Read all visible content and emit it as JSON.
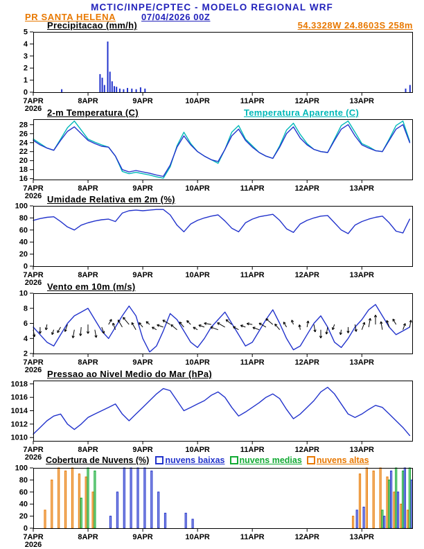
{
  "header": {
    "title": "MCTIC/INPE/CPTEC - MODELO REGIONAL WRF",
    "station": "PR SANTA HELENA",
    "run": "07/04/2026 00Z",
    "coords": "54.3328W 24.8603S 258m"
  },
  "colors": {
    "blue": "#2233cc",
    "cyan": "#00b8b8",
    "orange": "#e87800",
    "green": "#11aa33",
    "header_blue": "#2222bb",
    "black": "#000000"
  },
  "x_axis": {
    "tick_labels": [
      "7APR",
      "8APR",
      "9APR",
      "10APR",
      "11APR",
      "12APR",
      "13APR"
    ],
    "year_label": "2026",
    "range": [
      0,
      6.92
    ]
  },
  "chart_data": [
    {
      "id": "precipitacao",
      "type": "bar",
      "title": "Precipitacao (mm/h)",
      "ylim": [
        0,
        5
      ],
      "yticks": [
        0,
        1,
        2,
        3,
        4,
        5
      ],
      "bars": [
        {
          "t": 0.52,
          "v": 0.25
        },
        {
          "t": 1.22,
          "v": 1.5
        },
        {
          "t": 1.26,
          "v": 1.2
        },
        {
          "t": 1.3,
          "v": 0.6
        },
        {
          "t": 1.36,
          "v": 4.2
        },
        {
          "t": 1.4,
          "v": 1.7
        },
        {
          "t": 1.44,
          "v": 0.9
        },
        {
          "t": 1.48,
          "v": 0.5
        },
        {
          "t": 1.52,
          "v": 0.45
        },
        {
          "t": 1.58,
          "v": 0.3
        },
        {
          "t": 1.65,
          "v": 0.25
        },
        {
          "t": 1.72,
          "v": 0.35
        },
        {
          "t": 1.8,
          "v": 0.3
        },
        {
          "t": 1.88,
          "v": 0.25
        },
        {
          "t": 1.96,
          "v": 0.4
        },
        {
          "t": 2.04,
          "v": 0.3
        },
        {
          "t": 6.8,
          "v": 0.3
        },
        {
          "t": 6.88,
          "v": 0.6
        }
      ]
    },
    {
      "id": "temperatura",
      "type": "line",
      "title": "2-m Temperatura (C)",
      "title2": "Temperatura Aparente (C)",
      "ylim": [
        15.8,
        29.2
      ],
      "yticks": [
        16,
        18,
        20,
        22,
        24,
        26,
        28
      ],
      "t0": 0,
      "dt": 0.125,
      "series": [
        {
          "name": "Temperatura Aparente (C)",
          "color_key": "cyan",
          "values": [
            24.8,
            23.8,
            22.8,
            22.3,
            24.8,
            27.3,
            28.8,
            26.8,
            24.8,
            24.1,
            23.5,
            23.0,
            21.0,
            17.6,
            17.1,
            17.4,
            17.1,
            16.8,
            16.4,
            16.1,
            18.6,
            23.3,
            26.3,
            23.8,
            22.0,
            21.0,
            20.2,
            19.4,
            22.5,
            26.3,
            27.8,
            24.8,
            23.3,
            21.8,
            21.0,
            20.5,
            23.3,
            26.8,
            28.3,
            25.8,
            23.8,
            22.5,
            22.0,
            21.8,
            24.8,
            27.8,
            28.8,
            26.3,
            23.8,
            23.1,
            22.2,
            22.0,
            24.8,
            27.8,
            28.8,
            24.3
          ]
        },
        {
          "name": "2-m Temperatura (C)",
          "color_key": "blue",
          "values": [
            24.5,
            23.5,
            22.8,
            22.3,
            24.5,
            26.5,
            27.5,
            26.0,
            24.5,
            23.8,
            23.2,
            23.0,
            21.0,
            18.0,
            17.5,
            17.8,
            17.5,
            17.2,
            16.8,
            16.5,
            19.0,
            23.0,
            25.5,
            23.5,
            22.0,
            21.0,
            20.2,
            19.8,
            22.5,
            25.5,
            27.0,
            24.5,
            23.0,
            21.8,
            21.0,
            20.5,
            23.0,
            26.0,
            27.5,
            25.0,
            23.5,
            22.5,
            22.0,
            21.8,
            24.5,
            27.0,
            28.0,
            25.5,
            23.5,
            22.8,
            22.2,
            22.0,
            24.5,
            27.0,
            28.0,
            24.0
          ]
        }
      ]
    },
    {
      "id": "umidade",
      "type": "line",
      "title": "Umidade Relativa em 2m (%)",
      "ylim": [
        0,
        100
      ],
      "yticks": [
        0,
        20,
        40,
        60,
        80,
        100
      ],
      "t0": 0,
      "dt": 0.125,
      "series": [
        {
          "name": "Umidade Relativa em 2m (%)",
          "color_key": "blue",
          "values": [
            76,
            79,
            81,
            82,
            74,
            65,
            60,
            68,
            72,
            75,
            77,
            78,
            74,
            88,
            92,
            93,
            92,
            93,
            94,
            94,
            85,
            68,
            57,
            70,
            76,
            80,
            83,
            85,
            75,
            63,
            57,
            72,
            78,
            82,
            84,
            86,
            76,
            62,
            56,
            70,
            76,
            80,
            83,
            84,
            72,
            60,
            54,
            68,
            74,
            78,
            81,
            83,
            72,
            58,
            55,
            78
          ]
        }
      ]
    },
    {
      "id": "vento",
      "type": "line",
      "title": "Vento em 10m (m/s)",
      "ylim": [
        2,
        10
      ],
      "yticks": [
        2,
        4,
        6,
        8,
        10
      ],
      "t0": 0,
      "dt": 0.125,
      "series": [
        {
          "name": "Vento em 10m (m/s)",
          "color_key": "blue",
          "values": [
            5.5,
            4.5,
            3.5,
            3.0,
            4.5,
            6.0,
            7.0,
            7.5,
            8.0,
            6.5,
            5.0,
            4.0,
            5.5,
            7.0,
            8.3,
            7.0,
            4.0,
            2.2,
            3.0,
            5.0,
            7.3,
            6.5,
            5.0,
            3.5,
            2.8,
            4.0,
            5.5,
            6.5,
            7.5,
            6.0,
            4.5,
            3.0,
            3.5,
            5.0,
            6.5,
            7.8,
            6.0,
            4.0,
            2.5,
            3.0,
            4.5,
            6.0,
            7.0,
            5.5,
            3.5,
            2.8,
            4.0,
            5.5,
            6.5,
            7.8,
            8.5,
            7.0,
            5.5,
            4.5,
            5.0,
            5.5
          ]
        }
      ],
      "barbs": {
        "anchor": 5.5,
        "wind_direction_deg": [
          170,
          180,
          190,
          200,
          210,
          200,
          190,
          185,
          180,
          170,
          160,
          30,
          340,
          330,
          320,
          330,
          320,
          310,
          300,
          290,
          300,
          310,
          320,
          315,
          300,
          290,
          280,
          290,
          300,
          310,
          300,
          290,
          280,
          290,
          300,
          310,
          320,
          330,
          340,
          350,
          10,
          170,
          180,
          190,
          200,
          190,
          180,
          170,
          20,
          10,
          0,
          350,
          340,
          330,
          20,
          10
        ]
      }
    },
    {
      "id": "pressao",
      "type": "line",
      "title": "Pressao ao Nivel Medio do Mar (hPa)",
      "ylim": [
        1009.5,
        1018.5
      ],
      "yticks": [
        1010,
        1012,
        1014,
        1016,
        1018
      ],
      "t0": 0,
      "dt": 0.125,
      "series": [
        {
          "name": "Pressao ao Nivel Medio do Mar (hPa)",
          "color_key": "blue",
          "values": [
            1010.5,
            1011.5,
            1012.5,
            1013.2,
            1013.5,
            1012.0,
            1011.2,
            1012.0,
            1013.0,
            1013.5,
            1014.0,
            1014.5,
            1015.0,
            1013.5,
            1012.5,
            1013.5,
            1014.5,
            1015.5,
            1016.5,
            1017.3,
            1017.0,
            1015.5,
            1014.0,
            1014.5,
            1015.0,
            1015.5,
            1016.3,
            1016.8,
            1016.0,
            1014.5,
            1013.2,
            1013.8,
            1014.5,
            1015.2,
            1016.0,
            1016.5,
            1015.8,
            1014.2,
            1012.8,
            1013.5,
            1014.5,
            1015.5,
            1016.8,
            1017.5,
            1016.5,
            1015.0,
            1013.5,
            1013.0,
            1013.5,
            1014.2,
            1014.8,
            1014.5,
            1013.5,
            1012.5,
            1011.5,
            1010.3
          ]
        }
      ]
    },
    {
      "id": "nuvens",
      "type": "bar-multi",
      "title": "Cobertura de Nuvens (%)",
      "ylim": [
        0,
        100
      ],
      "yticks": [
        0,
        20,
        40,
        60,
        80,
        100
      ],
      "t0": 0,
      "dt": 0.125,
      "legend": [
        {
          "label": "nuvens baixas",
          "color_key": "blue"
        },
        {
          "label": "nuvens medias",
          "color_key": "green"
        },
        {
          "label": "nuvens altas",
          "color_key": "orange"
        }
      ],
      "series": [
        {
          "name": "nuvens baixas",
          "key": "low",
          "color_key": "blue",
          "values": [
            0,
            0,
            0,
            0,
            0,
            0,
            0,
            0,
            0,
            0,
            0,
            20,
            60,
            100,
            100,
            100,
            100,
            95,
            60,
            25,
            0,
            0,
            25,
            15,
            0,
            0,
            0,
            0,
            0,
            0,
            0,
            0,
            0,
            0,
            0,
            0,
            0,
            0,
            0,
            0,
            0,
            0,
            0,
            0,
            0,
            0,
            0,
            30,
            35,
            0,
            0,
            20,
            95,
            60,
            100,
            80
          ]
        },
        {
          "name": "nuvens medias",
          "key": "mid",
          "color_key": "green",
          "values": [
            0,
            0,
            0,
            0,
            0,
            0,
            0,
            50,
            100,
            95,
            0,
            0,
            0,
            0,
            0,
            0,
            0,
            0,
            0,
            0,
            0,
            0,
            0,
            0,
            0,
            0,
            0,
            0,
            0,
            0,
            0,
            0,
            0,
            0,
            0,
            0,
            0,
            0,
            0,
            0,
            0,
            0,
            0,
            0,
            0,
            0,
            0,
            0,
            0,
            0,
            0,
            30,
            80,
            100,
            95,
            100
          ]
        },
        {
          "name": "nuvens altas",
          "key": "high",
          "color_key": "orange",
          "values": [
            0,
            0,
            30,
            80,
            100,
            95,
            100,
            90,
            85,
            60,
            0,
            0,
            0,
            0,
            0,
            0,
            0,
            0,
            0,
            0,
            0,
            0,
            0,
            0,
            0,
            0,
            0,
            0,
            0,
            0,
            0,
            0,
            0,
            0,
            0,
            0,
            0,
            0,
            0,
            0,
            0,
            0,
            0,
            0,
            0,
            0,
            0,
            20,
            90,
            100,
            95,
            100,
            85,
            60,
            40,
            30
          ]
        }
      ]
    }
  ]
}
